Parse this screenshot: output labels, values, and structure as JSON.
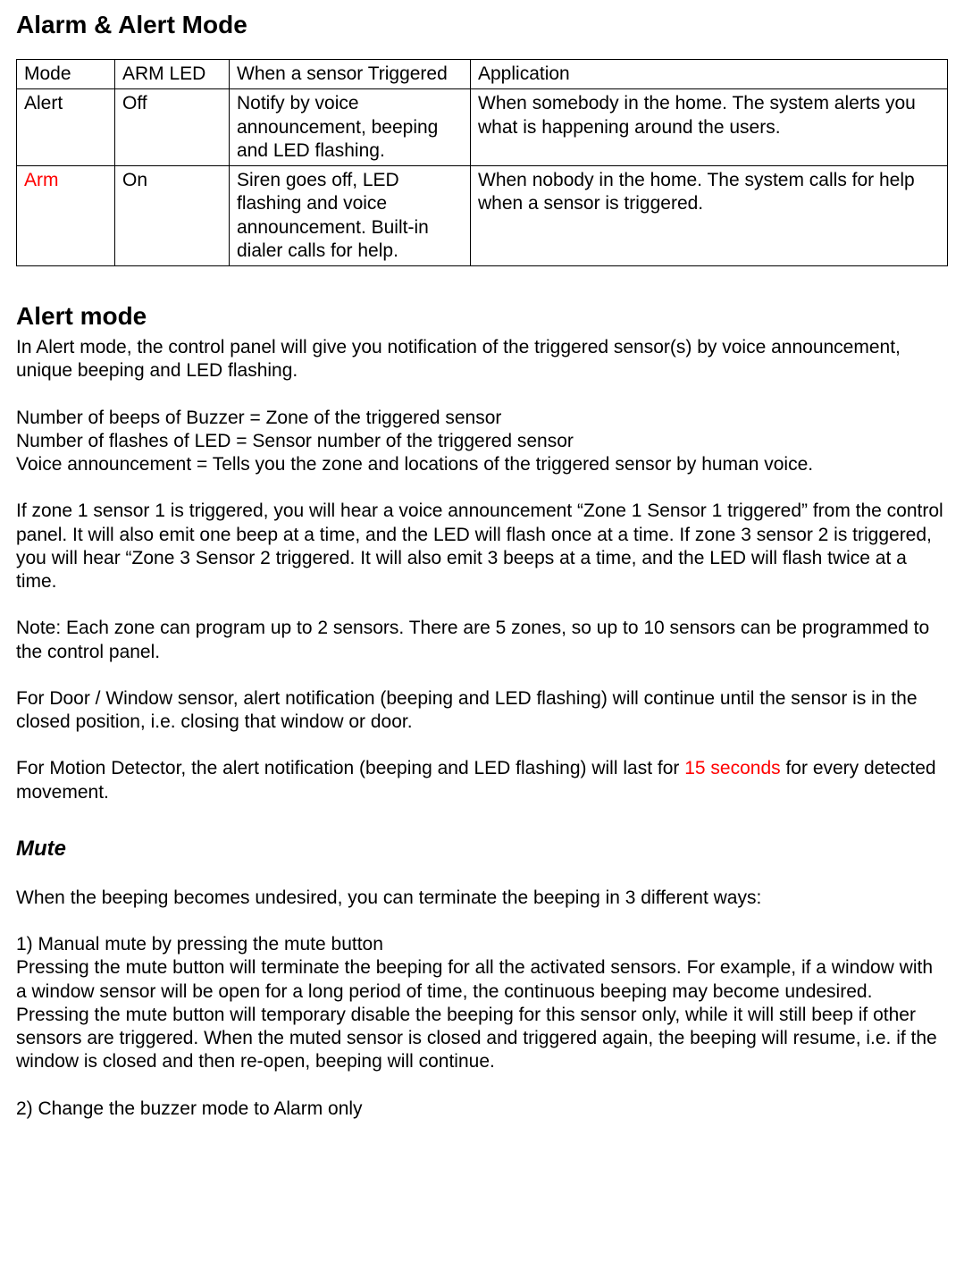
{
  "title": "Alarm & Alert Mode",
  "table": {
    "header": {
      "mode": "Mode",
      "arm_led": "ARM LED",
      "triggered": "When a sensor Triggered",
      "application": "Application"
    },
    "rows": [
      {
        "mode": "Alert",
        "mode_color": "#000000",
        "arm_led": "Off",
        "triggered": "Notify by voice announcement, beeping and LED flashing.",
        "application": "When somebody in the home.  The system alerts you what is happening around the users."
      },
      {
        "mode": "Arm",
        "mode_color": "#ff0000",
        "arm_led": "On",
        "triggered": "Siren goes off, LED flashing and voice announcement. Built-in dialer calls for help.",
        "application": "When nobody in the home.  The system calls for help when a sensor is triggered."
      }
    ]
  },
  "alert_mode": {
    "heading": "Alert mode",
    "p1": "In Alert mode, the control panel will give you notification of the triggered sensor(s) by voice announcement, unique beeping and LED flashing.",
    "l1": "Number of beeps of Buzzer = Zone of the triggered sensor",
    "l2": "Number of flashes of LED = Sensor number of the triggered sensor",
    "l3": "Voice announcement = Tells you the zone and locations of the triggered sensor by human voice.",
    "p2": "If zone 1 sensor 1 is triggered, you will hear a voice announcement “Zone 1 Sensor 1 triggered” from the control panel.  It will also emit one beep at a time, and the LED will flash once at a time.  If zone 3 sensor 2 is triggered, you will hear “Zone 3 Sensor 2 triggered.  It will also emit 3 beeps at a time, and the LED will flash twice at a time.",
    "p3": "Note: Each zone can program up to 2 sensors.  There are 5 zones, so up to 10 sensors can be programmed to the control panel.",
    "p4": "For Door / Window sensor, alert notification (beeping and LED flashing) will continue until the sensor is in the closed position, i.e. closing that window or door.",
    "p5a": "For Motion Detector, the alert notification (beeping and LED flashing) will last for ",
    "p5_red": "15 seconds",
    "p5b": " for every detected movement."
  },
  "mute": {
    "heading": "Mute",
    "p1": "When the beeping becomes undesired, you can terminate the beeping in 3 different ways:",
    "item1_title": "1)  Manual mute by pressing the mute button",
    "item1_body": "Pressing the mute button will terminate the beeping for all the activated sensors.  For example, if a window with a window sensor will be open for a long period of time, the continuous beeping may become undesired.  Pressing the mute button will temporary disable the beeping for this sensor only, while it will still beep if other sensors are triggered.  When the muted sensor is closed and triggered again, the beeping will resume, i.e. if the window is closed and then re-open, beeping will continue.",
    "item2_title": "2)  Change the buzzer mode to Alarm only"
  }
}
